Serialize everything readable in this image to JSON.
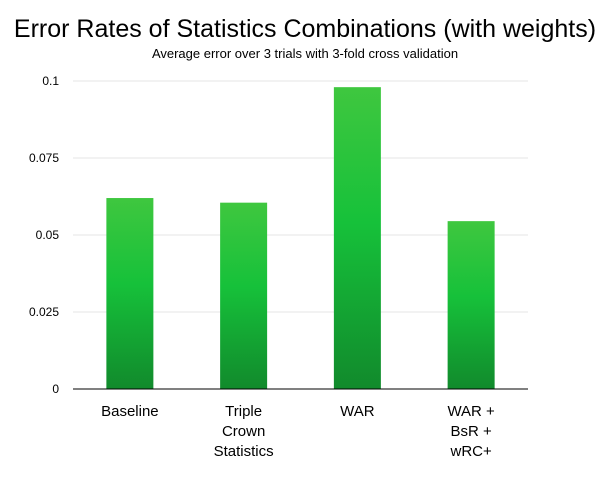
{
  "chart_data": {
    "type": "bar",
    "title": "Error Rates of Statistics Combinations (with weights)",
    "subtitle": "Average error over 3 trials with 3-fold cross validation",
    "xlabel": "",
    "ylabel": "",
    "categories": [
      [
        "Baseline"
      ],
      [
        "Triple",
        "Crown",
        "Statistics"
      ],
      [
        "WAR"
      ],
      [
        "WAR +",
        "BsR +",
        "wRC+"
      ]
    ],
    "values": [
      0.062,
      0.0605,
      0.098,
      0.0545
    ],
    "ylim": [
      0,
      0.1
    ],
    "yticks": [
      0,
      0.025,
      0.05,
      0.075,
      0.1
    ],
    "ytick_labels": [
      "0",
      "0.025",
      "0.05",
      "0.075",
      "0.1"
    ],
    "grid": true,
    "legend": "none",
    "colors": {
      "bar_top": "#3fc73f",
      "bar_mid": "#16c13a",
      "bar_bottom": "#118a2c",
      "grid": "#e6e6e6",
      "axis": "#000000"
    }
  }
}
